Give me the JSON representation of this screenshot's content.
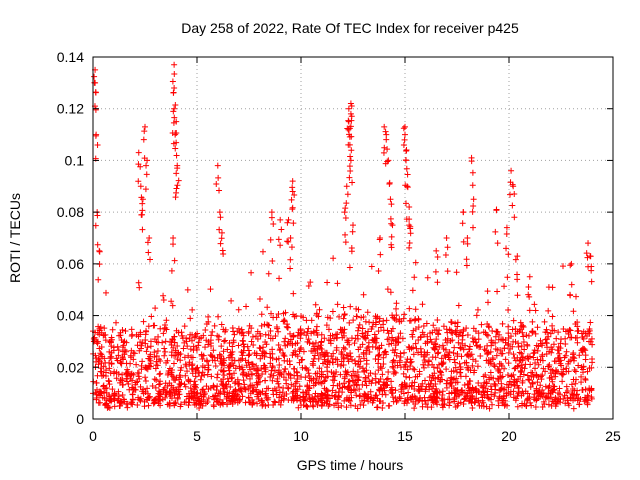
{
  "chart_data": {
    "type": "scatter",
    "title": "Day 258 of 2022, Rate Of TEC Index for receiver p425",
    "xlabel": "GPS time / hours",
    "ylabel": "ROTI / TECUs",
    "xlim": [
      0,
      25
    ],
    "ylim": [
      0,
      0.14
    ],
    "x_ticks": [
      "0",
      "5",
      "10",
      "15",
      "20",
      "25"
    ],
    "y_ticks": [
      "0",
      "0.02",
      "0.04",
      "0.06",
      "0.08",
      "0.1",
      "0.12",
      "0.14"
    ],
    "grid": true,
    "marker": "plus",
    "color": "#ff0000",
    "x_range_of_data": [
      0,
      24
    ],
    "dense_band_ceiling_approx": 0.03,
    "notable_points": [
      {
        "x": 0.1,
        "y": 0.135
      },
      {
        "x": 0.1,
        "y": 0.13
      },
      {
        "x": 0.15,
        "y": 0.11
      },
      {
        "x": 0.2,
        "y": 0.08
      },
      {
        "x": 0.3,
        "y": 0.065
      },
      {
        "x": 2.2,
        "y": 0.103
      },
      {
        "x": 2.5,
        "y": 0.113
      },
      {
        "x": 2.6,
        "y": 0.1
      },
      {
        "x": 2.3,
        "y": 0.09
      },
      {
        "x": 2.4,
        "y": 0.085
      },
      {
        "x": 2.7,
        "y": 0.07
      },
      {
        "x": 3.9,
        "y": 0.137
      },
      {
        "x": 3.9,
        "y": 0.128
      },
      {
        "x": 3.9,
        "y": 0.12
      },
      {
        "x": 4.0,
        "y": 0.115
      },
      {
        "x": 3.95,
        "y": 0.11
      },
      {
        "x": 4.05,
        "y": 0.098
      },
      {
        "x": 4.0,
        "y": 0.095
      },
      {
        "x": 3.85,
        "y": 0.07
      },
      {
        "x": 6.0,
        "y": 0.098
      },
      {
        "x": 6.1,
        "y": 0.08
      },
      {
        "x": 6.2,
        "y": 0.072
      },
      {
        "x": 8.6,
        "y": 0.08
      },
      {
        "x": 9.0,
        "y": 0.077
      },
      {
        "x": 9.4,
        "y": 0.077
      },
      {
        "x": 9.6,
        "y": 0.092
      },
      {
        "x": 9.6,
        "y": 0.088
      },
      {
        "x": 9.5,
        "y": 0.07
      },
      {
        "x": 12.1,
        "y": 0.08
      },
      {
        "x": 12.3,
        "y": 0.12
      },
      {
        "x": 12.4,
        "y": 0.122
      },
      {
        "x": 12.4,
        "y": 0.118
      },
      {
        "x": 12.3,
        "y": 0.115
      },
      {
        "x": 12.35,
        "y": 0.106
      },
      {
        "x": 12.4,
        "y": 0.1
      },
      {
        "x": 12.2,
        "y": 0.09
      },
      {
        "x": 12.5,
        "y": 0.075
      },
      {
        "x": 13.8,
        "y": 0.07
      },
      {
        "x": 14.0,
        "y": 0.113
      },
      {
        "x": 14.1,
        "y": 0.11
      },
      {
        "x": 14.2,
        "y": 0.1
      },
      {
        "x": 14.3,
        "y": 0.085
      },
      {
        "x": 14.4,
        "y": 0.075
      },
      {
        "x": 15.0,
        "y": 0.113
      },
      {
        "x": 15.0,
        "y": 0.11
      },
      {
        "x": 15.05,
        "y": 0.1
      },
      {
        "x": 15.1,
        "y": 0.09
      },
      {
        "x": 15.2,
        "y": 0.082
      },
      {
        "x": 15.2,
        "y": 0.075
      },
      {
        "x": 16.5,
        "y": 0.065
      },
      {
        "x": 17.0,
        "y": 0.07
      },
      {
        "x": 18.2,
        "y": 0.101
      },
      {
        "x": 18.3,
        "y": 0.085
      },
      {
        "x": 17.8,
        "y": 0.08
      },
      {
        "x": 18.0,
        "y": 0.07
      },
      {
        "x": 19.4,
        "y": 0.081
      },
      {
        "x": 19.9,
        "y": 0.074
      },
      {
        "x": 20.1,
        "y": 0.096
      },
      {
        "x": 20.2,
        "y": 0.09
      },
      {
        "x": 20.4,
        "y": 0.063
      },
      {
        "x": 21.0,
        "y": 0.055
      },
      {
        "x": 23.0,
        "y": 0.06
      },
      {
        "x": 23.8,
        "y": 0.068
      },
      {
        "x": 23.9,
        "y": 0.063
      }
    ]
  }
}
